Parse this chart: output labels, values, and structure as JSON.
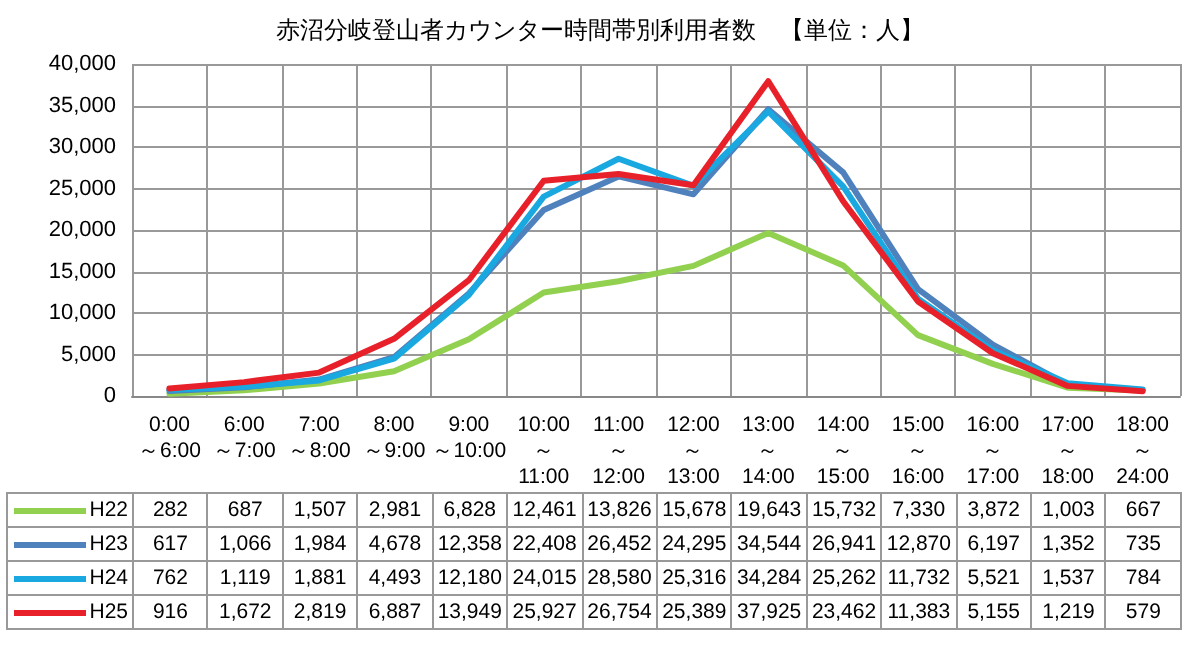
{
  "chart_data": {
    "type": "line",
    "title": "赤沼分岐登山者カウンター時間帯別利用者数　【単位：人】",
    "categories": [
      "0:00～6:00",
      "6:00～7:00",
      "7:00～8:00",
      "8:00～9:00",
      "9:00～10:00",
      "10:00～11:00",
      "11:00～12:00",
      "12:00～13:00",
      "13:00～14:00",
      "14:00～15:00",
      "15:00～16:00",
      "16:00～17:00",
      "17:00～18:00",
      "18:00～24:00"
    ],
    "series": [
      {
        "name": "H22",
        "color": "#92d050",
        "values": [
          282,
          687,
          1507,
          2981,
          6828,
          12461,
          13826,
          15678,
          19643,
          15732,
          7330,
          3872,
          1003,
          667
        ],
        "value_labels": [
          "282",
          "687",
          "1,507",
          "2,981",
          "6,828",
          "12,461",
          "13,826",
          "15,678",
          "19,643",
          "15,732",
          "7,330",
          "3,872",
          "1,003",
          "667"
        ]
      },
      {
        "name": "H23",
        "color": "#4f81bd",
        "values": [
          617,
          1066,
          1984,
          4678,
          12358,
          22408,
          26452,
          24295,
          34544,
          26941,
          12870,
          6197,
          1352,
          735
        ],
        "value_labels": [
          "617",
          "1,066",
          "1,984",
          "4,678",
          "12,358",
          "22,408",
          "26,452",
          "24,295",
          "34,544",
          "26,941",
          "12,870",
          "6,197",
          "1,352",
          "735"
        ]
      },
      {
        "name": "H24",
        "color": "#1aa8e0",
        "values": [
          762,
          1119,
          1881,
          4493,
          12180,
          24015,
          28580,
          25316,
          34284,
          25262,
          11732,
          5521,
          1537,
          784
        ],
        "value_labels": [
          "762",
          "1,119",
          "1,881",
          "4,493",
          "12,180",
          "24,015",
          "28,580",
          "25,316",
          "34,284",
          "25,262",
          "11,732",
          "5,521",
          "1,537",
          "784"
        ]
      },
      {
        "name": "H25",
        "color": "#e8202a",
        "values": [
          916,
          1672,
          2819,
          6887,
          13949,
          25927,
          26754,
          25389,
          37925,
          23462,
          11383,
          5155,
          1219,
          579
        ],
        "value_labels": [
          "916",
          "1,672",
          "2,819",
          "6,887",
          "13,949",
          "25,927",
          "26,754",
          "25,389",
          "37,925",
          "23,462",
          "11,383",
          "5,155",
          "1,219",
          "579"
        ]
      }
    ],
    "ylim": [
      0,
      40000
    ],
    "yticks": [
      0,
      {
        "value": 5000,
        "label": "5,000"
      },
      {
        "value": 10000,
        "label": "10,000"
      },
      {
        "value": 15000,
        "label": "15,000"
      },
      {
        "value": 20000,
        "label": "20,000"
      },
      {
        "value": 25000,
        "label": "25,000"
      },
      {
        "value": 30000,
        "label": "30,000"
      },
      {
        "value": 35000,
        "label": "35,000"
      },
      {
        "value": 40000,
        "label": "40,000"
      }
    ],
    "grid": true,
    "legend": "bottom",
    "marker": "none",
    "line_style": "solid"
  }
}
